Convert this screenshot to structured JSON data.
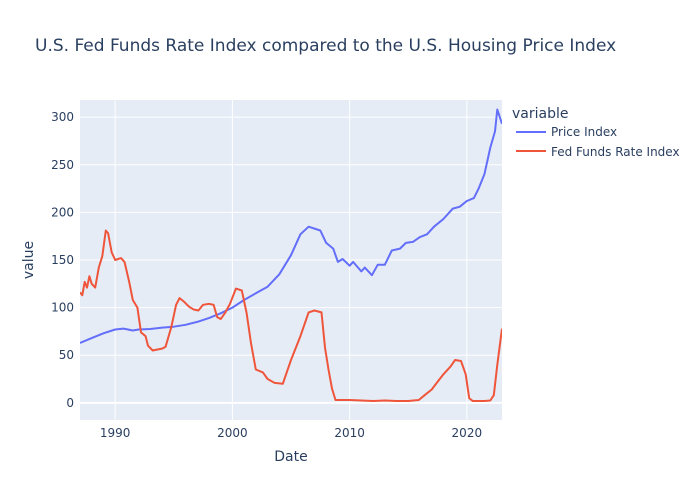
{
  "chart_data": {
    "type": "line",
    "title": "U.S. Fed Funds Rate Index compared to the U.S. Housing Price Index",
    "xlabel": "Date",
    "ylabel": "value",
    "xlim": [
      1987.0,
      2023.0
    ],
    "ylim": [
      -18,
      318
    ],
    "x_ticks": [
      1990,
      2000,
      2010,
      2020
    ],
    "y_ticks": [
      0,
      50,
      100,
      150,
      200,
      250,
      300
    ],
    "grid": true,
    "legend": {
      "title": "variable",
      "placement": "right"
    },
    "series": [
      {
        "name": "Price Index",
        "color": "#636efa",
        "points": [
          [
            1987.0,
            63
          ],
          [
            1988.0,
            68
          ],
          [
            1989.0,
            73
          ],
          [
            1990.0,
            77
          ],
          [
            1990.7,
            78
          ],
          [
            1991.5,
            76
          ],
          [
            1992.0,
            77
          ],
          [
            1993.0,
            77.5
          ],
          [
            1994.0,
            79
          ],
          [
            1995.0,
            80
          ],
          [
            1996.0,
            82
          ],
          [
            1997.0,
            85
          ],
          [
            1998.0,
            89
          ],
          [
            1999.0,
            94
          ],
          [
            2000.0,
            100
          ],
          [
            2001.0,
            108
          ],
          [
            2002.0,
            115
          ],
          [
            2003.0,
            122
          ],
          [
            2004.0,
            135
          ],
          [
            2005.0,
            155
          ],
          [
            2005.8,
            177
          ],
          [
            2006.5,
            185
          ],
          [
            2007.5,
            181
          ],
          [
            2008.0,
            168
          ],
          [
            2008.6,
            162
          ],
          [
            2009.0,
            148
          ],
          [
            2009.4,
            151
          ],
          [
            2010.0,
            144
          ],
          [
            2010.3,
            148
          ],
          [
            2011.0,
            138
          ],
          [
            2011.3,
            142
          ],
          [
            2011.9,
            134
          ],
          [
            2012.4,
            145
          ],
          [
            2013.0,
            145
          ],
          [
            2013.6,
            160
          ],
          [
            2014.3,
            162
          ],
          [
            2014.8,
            168
          ],
          [
            2015.4,
            169
          ],
          [
            2016.0,
            174
          ],
          [
            2016.6,
            177
          ],
          [
            2017.2,
            185
          ],
          [
            2018.0,
            193
          ],
          [
            2018.8,
            204
          ],
          [
            2019.4,
            206
          ],
          [
            2020.0,
            212
          ],
          [
            2020.6,
            215
          ],
          [
            2021.0,
            225
          ],
          [
            2021.5,
            240
          ],
          [
            2022.0,
            268
          ],
          [
            2022.4,
            285
          ],
          [
            2022.6,
            308
          ],
          [
            2023.0,
            293
          ]
        ]
      },
      {
        "name": "Fed Funds Rate Index",
        "color": "#ef553b",
        "points": [
          [
            1987.0,
            116
          ],
          [
            1987.2,
            113
          ],
          [
            1987.4,
            127
          ],
          [
            1987.6,
            121
          ],
          [
            1987.8,
            133
          ],
          [
            1988.0,
            125
          ],
          [
            1988.3,
            121
          ],
          [
            1988.6,
            142
          ],
          [
            1988.9,
            154
          ],
          [
            1989.2,
            181
          ],
          [
            1989.4,
            178
          ],
          [
            1989.7,
            158
          ],
          [
            1990.0,
            150
          ],
          [
            1990.5,
            152
          ],
          [
            1990.8,
            148
          ],
          [
            1991.2,
            127
          ],
          [
            1991.5,
            108
          ],
          [
            1991.9,
            100
          ],
          [
            1992.2,
            74
          ],
          [
            1992.6,
            70
          ],
          [
            1992.8,
            60
          ],
          [
            1993.2,
            55
          ],
          [
            1993.6,
            56
          ],
          [
            1994.0,
            57
          ],
          [
            1994.3,
            59
          ],
          [
            1994.8,
            80
          ],
          [
            1995.2,
            103
          ],
          [
            1995.5,
            110
          ],
          [
            1995.9,
            106
          ],
          [
            1996.3,
            101
          ],
          [
            1996.7,
            98
          ],
          [
            1997.1,
            97
          ],
          [
            1997.5,
            103
          ],
          [
            1998.0,
            104
          ],
          [
            1998.4,
            103
          ],
          [
            1998.7,
            90
          ],
          [
            1999.0,
            88
          ],
          [
            1999.4,
            95
          ],
          [
            1999.8,
            104
          ],
          [
            2000.3,
            120
          ],
          [
            2000.8,
            118
          ],
          [
            2001.2,
            95
          ],
          [
            2001.6,
            62
          ],
          [
            2002.0,
            35
          ],
          [
            2002.6,
            32
          ],
          [
            2003.0,
            25
          ],
          [
            2003.6,
            21
          ],
          [
            2004.3,
            20
          ],
          [
            2005.0,
            45
          ],
          [
            2005.8,
            70
          ],
          [
            2006.5,
            95
          ],
          [
            2007.0,
            97
          ],
          [
            2007.6,
            95
          ],
          [
            2007.9,
            58
          ],
          [
            2008.2,
            35
          ],
          [
            2008.5,
            15
          ],
          [
            2008.8,
            3
          ],
          [
            2009.5,
            3
          ],
          [
            2010.0,
            3
          ],
          [
            2011.0,
            2.5
          ],
          [
            2012.0,
            2
          ],
          [
            2013.0,
            2.5
          ],
          [
            2014.0,
            2
          ],
          [
            2015.0,
            2
          ],
          [
            2015.9,
            3
          ],
          [
            2016.4,
            8
          ],
          [
            2017.0,
            14
          ],
          [
            2017.5,
            22
          ],
          [
            2018.0,
            30
          ],
          [
            2018.6,
            38
          ],
          [
            2019.0,
            45
          ],
          [
            2019.5,
            44
          ],
          [
            2019.9,
            30
          ],
          [
            2020.2,
            5
          ],
          [
            2020.5,
            2
          ],
          [
            2021.0,
            2
          ],
          [
            2021.5,
            2
          ],
          [
            2022.0,
            2.5
          ],
          [
            2022.3,
            8
          ],
          [
            2022.6,
            40
          ],
          [
            2023.0,
            78
          ]
        ]
      }
    ]
  }
}
